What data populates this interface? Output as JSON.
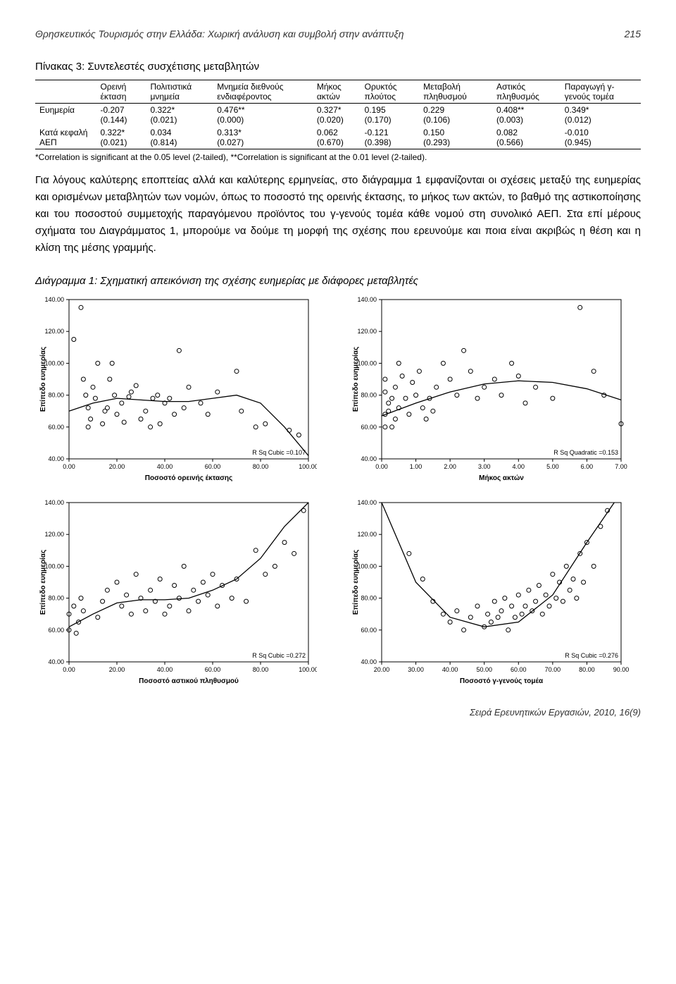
{
  "header": {
    "running_title": "Θρησκευτικός Τουρισμός στην Ελλάδα: Χωρική ανάλυση και συμβολή στην ανάπτυξη",
    "page_number": "215"
  },
  "table": {
    "title": "Πίνακας 3: Συντελεστές συσχέτισης μεταβλητών",
    "columns": [
      "",
      "Ορεινή έκταση",
      "Πολιτιστικά μνημεία",
      "Μνημεία διεθνούς ενδιαφέροντος",
      "Μήκος ακτών",
      "Ορυκτός πλούτος",
      "Μεταβολή πληθυσμού",
      "Αστικός πληθυσμός",
      "Παραγωγή γ-γενούς τομέα"
    ],
    "rows": [
      {
        "label": "Ευημερία",
        "v": [
          "-0.207",
          "0.322*",
          "0.476**",
          "0.327*",
          "0.195",
          "0.229",
          "0.408**",
          "0.349*"
        ],
        "p": [
          "(0.144)",
          "(0.021)",
          "(0.000)",
          "(0.020)",
          "(0.170)",
          "(0.106)",
          "(0.003)",
          "(0.012)"
        ]
      },
      {
        "label": "Κατά κεφαλή ΑΕΠ",
        "v": [
          "0.322*",
          "0.034",
          "0.313*",
          "0.062",
          "-0.121",
          "0.150",
          "0.082",
          "-0.010"
        ],
        "p": [
          "(0.021)",
          "(0.814)",
          "(0.027)",
          "(0.670)",
          "(0.398)",
          "(0.293)",
          "(0.566)",
          "(0.945)"
        ]
      }
    ],
    "footnote": "*Correlation is significant at the 0.05 level (2-tailed), **Correlation is significant at the 0.01 level (2-tailed)."
  },
  "paragraph": "Για λόγους καλύτερης εποπτείας αλλά και καλύτερης ερμηνείας, στο διάγραμμα 1 εμφανίζονται οι σχέσεις μεταξύ της ευημερίας και ορισμένων μεταβλητών των νομών, όπως το ποσοστό της ορεινής έκτασης, το μήκος των ακτών, το βαθμό της αστικοποίησης και του ποσοστού συμμετοχής παραγόμενου προϊόντος του γ-γενούς τομέα κάθε νομού στη συνολικό ΑΕΠ. Στα επί μέρους σχήματα του Διαγράμματος 1, μπορούμε να δούμε τη μορφή της σχέσης που ερευνούμε και ποια είναι ακριβώς η θέση και η κλίση της μέσης γραμμής.",
  "diagram_title": "Διάγραμμα 1: Σχηματική απεικόνιση της σχέσης ευημερίας με διάφορες μεταβλητές",
  "charts": [
    {
      "type": "scatter",
      "ylabel": "Επίπεδο ευημερίας",
      "xlabel": "Ποσοστό ορεινής έκτασης",
      "xlim": [
        0,
        100
      ],
      "xtick_step": 20,
      "ylim": [
        40,
        140
      ],
      "ytick_step": 20,
      "rsq_label": "R Sq Cubic =0.107",
      "curve": [
        [
          0,
          70
        ],
        [
          10,
          75
        ],
        [
          20,
          78
        ],
        [
          30,
          77
        ],
        [
          40,
          76
        ],
        [
          50,
          76
        ],
        [
          60,
          78
        ],
        [
          70,
          80
        ],
        [
          80,
          75
        ],
        [
          90,
          60
        ],
        [
          100,
          42
        ]
      ],
      "points": [
        [
          2,
          115
        ],
        [
          5,
          135
        ],
        [
          6,
          90
        ],
        [
          7,
          80
        ],
        [
          8,
          72
        ],
        [
          8,
          60
        ],
        [
          9,
          65
        ],
        [
          10,
          85
        ],
        [
          11,
          78
        ],
        [
          12,
          100
        ],
        [
          14,
          62
        ],
        [
          15,
          70
        ],
        [
          16,
          72
        ],
        [
          17,
          90
        ],
        [
          18,
          100
        ],
        [
          19,
          80
        ],
        [
          20,
          68
        ],
        [
          22,
          75
        ],
        [
          23,
          63
        ],
        [
          25,
          79
        ],
        [
          26,
          82
        ],
        [
          28,
          86
        ],
        [
          30,
          65
        ],
        [
          32,
          70
        ],
        [
          34,
          60
        ],
        [
          35,
          78
        ],
        [
          37,
          80
        ],
        [
          38,
          62
        ],
        [
          40,
          75
        ],
        [
          42,
          78
        ],
        [
          44,
          68
        ],
        [
          46,
          108
        ],
        [
          48,
          72
        ],
        [
          50,
          85
        ],
        [
          55,
          75
        ],
        [
          58,
          68
        ],
        [
          62,
          82
        ],
        [
          70,
          95
        ],
        [
          72,
          70
        ],
        [
          78,
          60
        ],
        [
          82,
          62
        ],
        [
          92,
          58
        ],
        [
          96,
          55
        ]
      ],
      "marker_color": "#000000",
      "background_color": "#ffffff",
      "line_color": "#000000"
    },
    {
      "type": "scatter",
      "ylabel": "Επίπεδο ευημερίας",
      "xlabel": "Μήκος ακτών",
      "xlim": [
        0,
        7
      ],
      "xtick_step": 1,
      "ylim": [
        40,
        140
      ],
      "ytick_step": 20,
      "rsq_label": "R Sq Quadratic =0.153",
      "curve": [
        [
          0,
          67
        ],
        [
          1,
          75
        ],
        [
          2,
          82
        ],
        [
          3,
          87
        ],
        [
          4,
          89
        ],
        [
          5,
          88
        ],
        [
          6,
          84
        ],
        [
          7,
          77
        ]
      ],
      "points": [
        [
          0.1,
          60
        ],
        [
          0.1,
          68
        ],
        [
          0.1,
          82
        ],
        [
          0.1,
          90
        ],
        [
          0.2,
          70
        ],
        [
          0.2,
          75
        ],
        [
          0.3,
          60
        ],
        [
          0.3,
          78
        ],
        [
          0.4,
          85
        ],
        [
          0.4,
          65
        ],
        [
          0.5,
          72
        ],
        [
          0.5,
          100
        ],
        [
          0.6,
          92
        ],
        [
          0.7,
          78
        ],
        [
          0.8,
          68
        ],
        [
          0.9,
          88
        ],
        [
          1.0,
          80
        ],
        [
          1.1,
          95
        ],
        [
          1.2,
          72
        ],
        [
          1.3,
          65
        ],
        [
          1.4,
          78
        ],
        [
          1.5,
          70
        ],
        [
          1.6,
          85
        ],
        [
          1.8,
          100
        ],
        [
          2.0,
          90
        ],
        [
          2.2,
          80
        ],
        [
          2.4,
          108
        ],
        [
          2.6,
          95
        ],
        [
          2.8,
          78
        ],
        [
          3.0,
          85
        ],
        [
          3.3,
          90
        ],
        [
          3.5,
          80
        ],
        [
          3.8,
          100
        ],
        [
          4.0,
          92
        ],
        [
          4.2,
          75
        ],
        [
          4.5,
          85
        ],
        [
          5.0,
          78
        ],
        [
          5.8,
          135
        ],
        [
          6.2,
          95
        ],
        [
          6.5,
          80
        ],
        [
          7.0,
          62
        ]
      ],
      "marker_color": "#000000",
      "background_color": "#ffffff",
      "line_color": "#000000"
    },
    {
      "type": "scatter",
      "ylabel": "Επίπεδο ευημερίας",
      "xlabel": "Ποσοστό αστικού πληθυσμού",
      "xlim": [
        0,
        100
      ],
      "xtick_step": 20,
      "ylim": [
        40,
        140
      ],
      "ytick_step": 20,
      "rsq_label": "R Sq Cubic =0.272",
      "curve": [
        [
          0,
          62
        ],
        [
          10,
          70
        ],
        [
          20,
          77
        ],
        [
          30,
          79
        ],
        [
          40,
          79
        ],
        [
          50,
          80
        ],
        [
          60,
          85
        ],
        [
          70,
          92
        ],
        [
          80,
          105
        ],
        [
          90,
          125
        ],
        [
          100,
          148
        ]
      ],
      "points": [
        [
          0,
          60
        ],
        [
          0,
          70
        ],
        [
          2,
          75
        ],
        [
          3,
          58
        ],
        [
          4,
          65
        ],
        [
          5,
          80
        ],
        [
          6,
          72
        ],
        [
          12,
          68
        ],
        [
          14,
          78
        ],
        [
          16,
          85
        ],
        [
          20,
          90
        ],
        [
          22,
          75
        ],
        [
          24,
          82
        ],
        [
          26,
          70
        ],
        [
          28,
          95
        ],
        [
          30,
          80
        ],
        [
          32,
          72
        ],
        [
          34,
          85
        ],
        [
          36,
          78
        ],
        [
          38,
          92
        ],
        [
          40,
          70
        ],
        [
          42,
          75
        ],
        [
          44,
          88
        ],
        [
          46,
          80
        ],
        [
          48,
          100
        ],
        [
          50,
          72
        ],
        [
          52,
          85
        ],
        [
          54,
          78
        ],
        [
          56,
          90
        ],
        [
          58,
          82
        ],
        [
          60,
          95
        ],
        [
          62,
          75
        ],
        [
          64,
          88
        ],
        [
          68,
          80
        ],
        [
          70,
          92
        ],
        [
          74,
          78
        ],
        [
          78,
          110
        ],
        [
          82,
          95
        ],
        [
          86,
          100
        ],
        [
          90,
          115
        ],
        [
          94,
          108
        ],
        [
          98,
          135
        ]
      ],
      "marker_color": "#000000",
      "background_color": "#ffffff",
      "line_color": "#000000"
    },
    {
      "type": "scatter",
      "ylabel": "Επίπεδο ευημερίας",
      "xlabel": "Ποσοστό γ-γενούς τομέα",
      "xlim": [
        20,
        90
      ],
      "xtick_step": 10,
      "ylim": [
        40,
        140
      ],
      "ytick_step": 20,
      "rsq_label": "R Sq Cubic =0.276",
      "curve": [
        [
          20,
          140
        ],
        [
          30,
          90
        ],
        [
          40,
          68
        ],
        [
          50,
          62
        ],
        [
          60,
          65
        ],
        [
          70,
          82
        ],
        [
          80,
          115
        ],
        [
          88,
          148
        ]
      ],
      "points": [
        [
          28,
          108
        ],
        [
          32,
          92
        ],
        [
          35,
          78
        ],
        [
          38,
          70
        ],
        [
          40,
          65
        ],
        [
          42,
          72
        ],
        [
          44,
          60
        ],
        [
          46,
          68
        ],
        [
          48,
          75
        ],
        [
          50,
          62
        ],
        [
          51,
          70
        ],
        [
          52,
          65
        ],
        [
          53,
          78
        ],
        [
          54,
          68
        ],
        [
          55,
          72
        ],
        [
          56,
          80
        ],
        [
          57,
          60
        ],
        [
          58,
          75
        ],
        [
          59,
          68
        ],
        [
          60,
          82
        ],
        [
          61,
          70
        ],
        [
          62,
          75
        ],
        [
          63,
          85
        ],
        [
          64,
          72
        ],
        [
          65,
          78
        ],
        [
          66,
          88
        ],
        [
          67,
          70
        ],
        [
          68,
          82
        ],
        [
          69,
          75
        ],
        [
          70,
          95
        ],
        [
          71,
          80
        ],
        [
          72,
          90
        ],
        [
          73,
          78
        ],
        [
          74,
          100
        ],
        [
          75,
          85
        ],
        [
          76,
          92
        ],
        [
          77,
          80
        ],
        [
          78,
          108
        ],
        [
          79,
          90
        ],
        [
          80,
          115
        ],
        [
          82,
          100
        ],
        [
          84,
          125
        ],
        [
          86,
          135
        ]
      ],
      "marker_color": "#000000",
      "background_color": "#ffffff",
      "line_color": "#000000"
    }
  ],
  "footer": "Σειρά Ερευνητικών Εργασιών, 2010, 16(9)"
}
